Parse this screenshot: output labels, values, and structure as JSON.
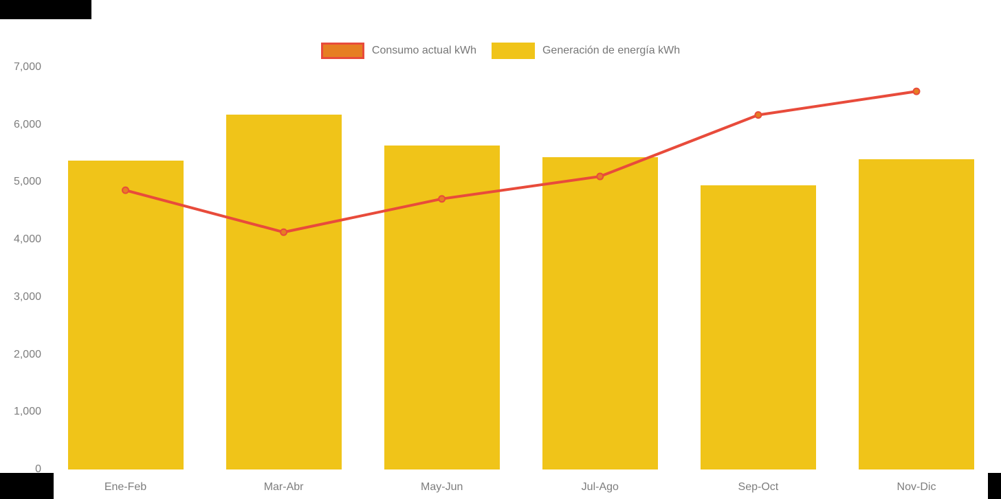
{
  "legend": {
    "position": "top-center"
  },
  "chart_data": {
    "type": "bar",
    "subtype": "bar-line-combo",
    "title": "",
    "xlabel": "",
    "ylabel": "",
    "categories": [
      "Ene-Feb",
      "Mar-Abr",
      "May-Jun",
      "Jul-Ago",
      "Sep-Oct",
      "Nov-Dic"
    ],
    "series": [
      {
        "name": "Consumo actual kWh",
        "type": "line",
        "color": "#e84b3b",
        "marker_fill": "#e67e22",
        "values": [
          4860,
          4130,
          4710,
          5100,
          6170,
          6580
        ]
      },
      {
        "name": "Generación de energía kWh",
        "type": "bar",
        "color": "#f0c419",
        "values": [
          5380,
          6170,
          5640,
          5440,
          4950,
          5400
        ]
      }
    ],
    "ylim": [
      0,
      7000
    ],
    "ytick_values": [
      0,
      1000,
      2000,
      3000,
      4000,
      5000,
      6000,
      7000
    ],
    "ytick_labels": [
      "0",
      "1,000",
      "2,000",
      "3,000",
      "4,000",
      "5,000",
      "6,000",
      "7,000"
    ],
    "grid": false,
    "legend_position": "top-center",
    "axis_text_color": "#7d7d7d",
    "legend_text_color": "#777777"
  }
}
